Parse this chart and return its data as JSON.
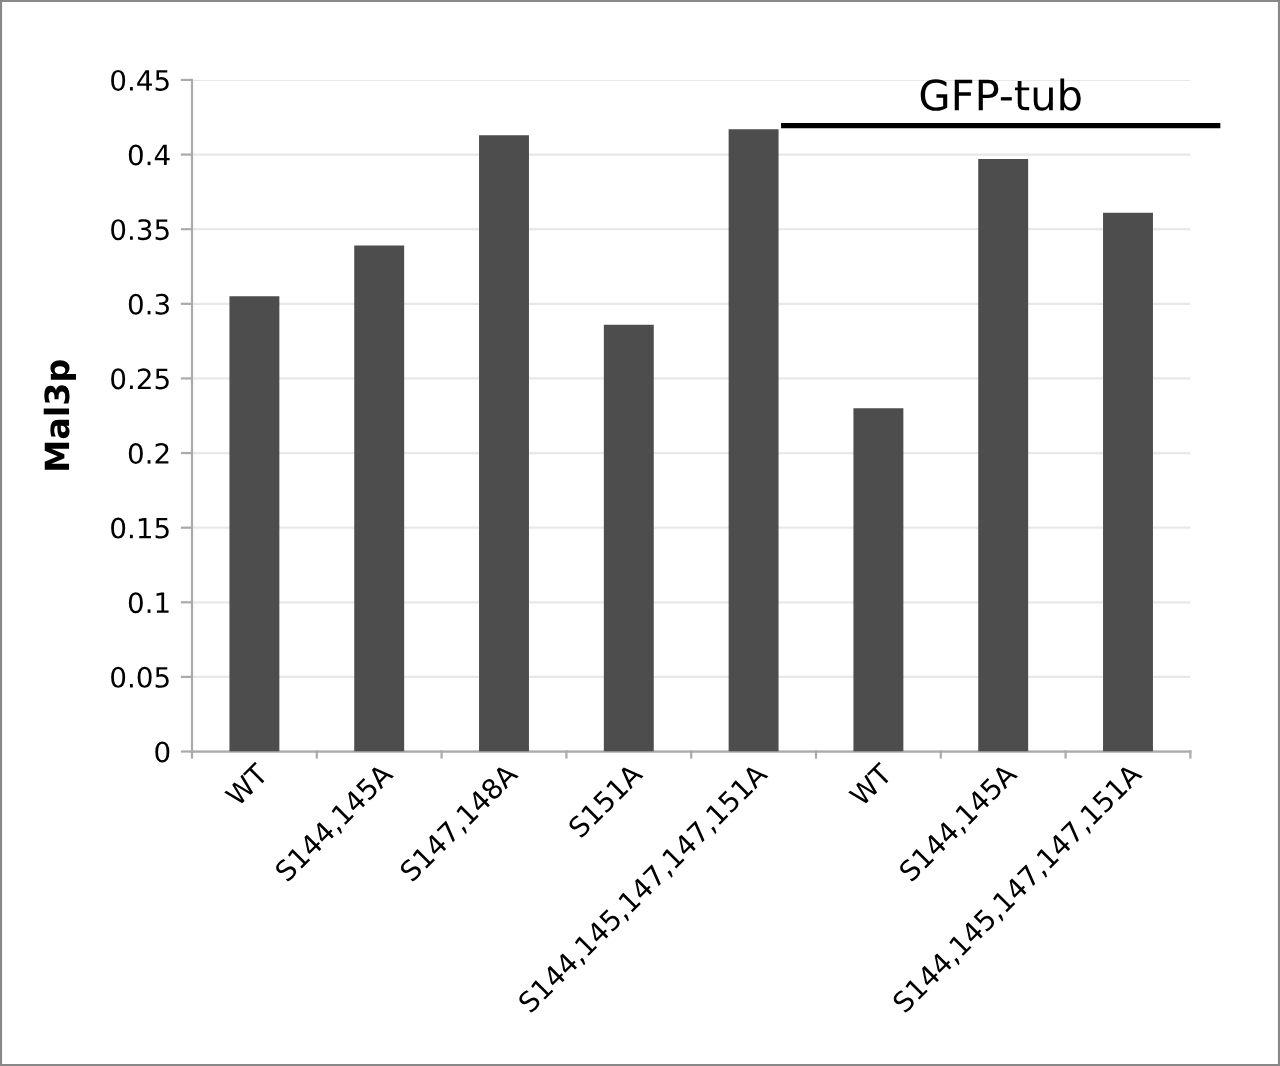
{
  "chart_data": {
    "type": "bar",
    "ylabel": "Mal3p",
    "categories": [
      "WT",
      "S144,145A",
      "S147,148A",
      "S151A",
      "S144,145,147,147,151A",
      "WT",
      "S144,145A",
      "S144,145,147,147,151A"
    ],
    "values": [
      0.305,
      0.339,
      0.413,
      0.286,
      0.417,
      0.23,
      0.397,
      0.361
    ],
    "color": "#4d4d4d",
    "ylim": [
      0,
      0.45
    ],
    "yticks": [
      0,
      0.05,
      0.1,
      0.15,
      0.2,
      0.25,
      0.3,
      0.35,
      0.4,
      0.45
    ],
    "grid": "y",
    "legend": false,
    "annotations": [
      "GFP-tub"
    ]
  }
}
